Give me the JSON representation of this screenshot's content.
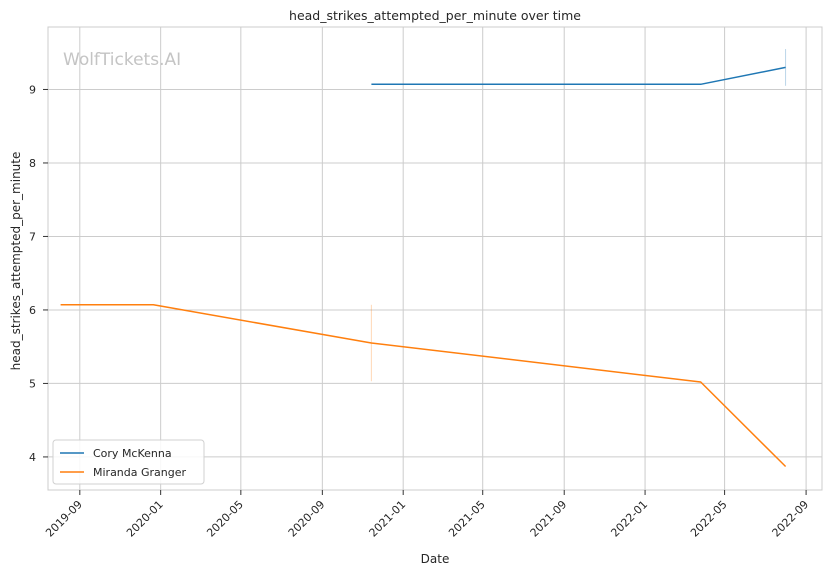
{
  "chart_data": {
    "type": "line",
    "title": "head_strikes_attempted_per_minute over time",
    "xlabel": "Date",
    "ylabel": "head_strikes_attempted_per_minute",
    "watermark": "WolfTickets.AI",
    "x_ticks": [
      "2019-09",
      "2020-01",
      "2020-05",
      "2020-09",
      "2021-01",
      "2021-05",
      "2021-09",
      "2022-01",
      "2022-05",
      "2022-09"
    ],
    "y_ticks": [
      4,
      5,
      6,
      7,
      8,
      9
    ],
    "xlim": [
      "2019-07-15",
      "2022-09-25"
    ],
    "ylim": [
      3.55,
      9.85
    ],
    "grid": true,
    "legend_position": "lower-left",
    "series": [
      {
        "name": "Cory McKenna",
        "color": "#1f77b4",
        "points": [
          {
            "x": "2020-11-14",
            "y": 9.07
          },
          {
            "x": "2022-03-26",
            "y": 9.07
          },
          {
            "x": "2022-08-01",
            "y": 9.3
          }
        ]
      },
      {
        "name": "Miranda Granger",
        "color": "#ff7f0e",
        "points": [
          {
            "x": "2019-08-03",
            "y": 6.07
          },
          {
            "x": "2019-12-21",
            "y": 6.07
          },
          {
            "x": "2020-11-14",
            "y": 5.55
          },
          {
            "x": "2022-03-26",
            "y": 5.02
          },
          {
            "x": "2022-08-01",
            "y": 3.87
          }
        ]
      }
    ],
    "error_marks": [
      {
        "color": "#1f77b4",
        "x": "2022-08-01",
        "y_low": 9.05,
        "y_high": 9.55
      },
      {
        "color": "#ff7f0e",
        "x": "2020-11-14",
        "y_low": 5.03,
        "y_high": 6.07
      }
    ]
  }
}
